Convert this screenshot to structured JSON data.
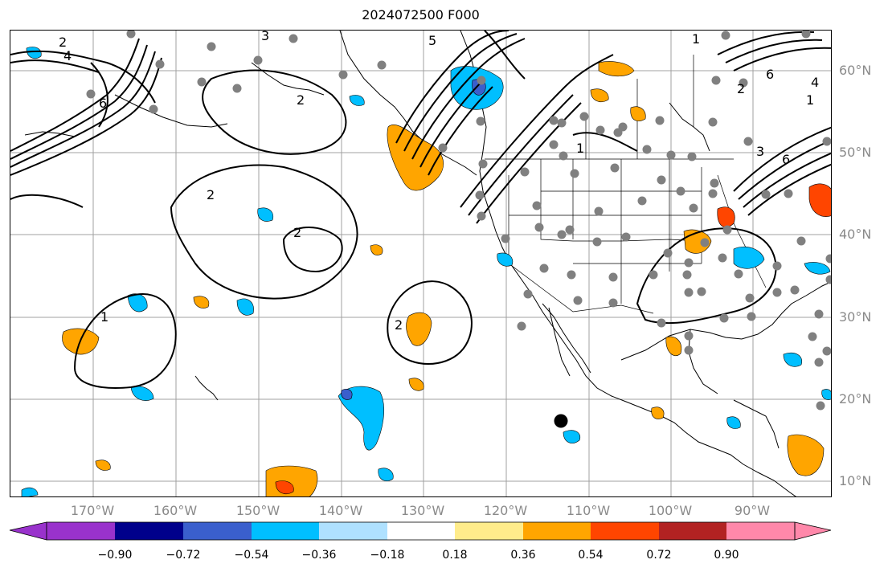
{
  "title": "2024072500 F000",
  "colors": {
    "ocean": "#ffffff",
    "contour": "#000000",
    "grid": "#a0a0a0",
    "station": "#808080",
    "marker": "#000000"
  },
  "lat_labels": [
    "60°N",
    "50°N",
    "40°N",
    "30°N",
    "20°N",
    "10°N"
  ],
  "lon_labels": [
    "170°W",
    "160°W",
    "150°W",
    "140°W",
    "130°W",
    "120°W",
    "110°W",
    "100°W",
    "90°W"
  ],
  "colorbar": {
    "colors": [
      "#9932cc",
      "#00008b",
      "#3a5fcd",
      "#00bfff",
      "#afe1ff",
      "#ffffff",
      "#ffec8b",
      "#ffa500",
      "#ff4500",
      "#b22222",
      "#ff88aa"
    ],
    "tick_labels": [
      "−0.90",
      "−0.72",
      "−0.54",
      "−0.36",
      "−0.18",
      "0.18",
      "0.36",
      "0.54",
      "0.72",
      "0.90"
    ]
  },
  "contour_labels": [
    "2",
    "4",
    "3",
    "5",
    "1",
    "6",
    "2",
    "2",
    "2",
    "2",
    "1",
    "1",
    "3",
    "6",
    "4",
    "1",
    "6",
    "2"
  ]
}
